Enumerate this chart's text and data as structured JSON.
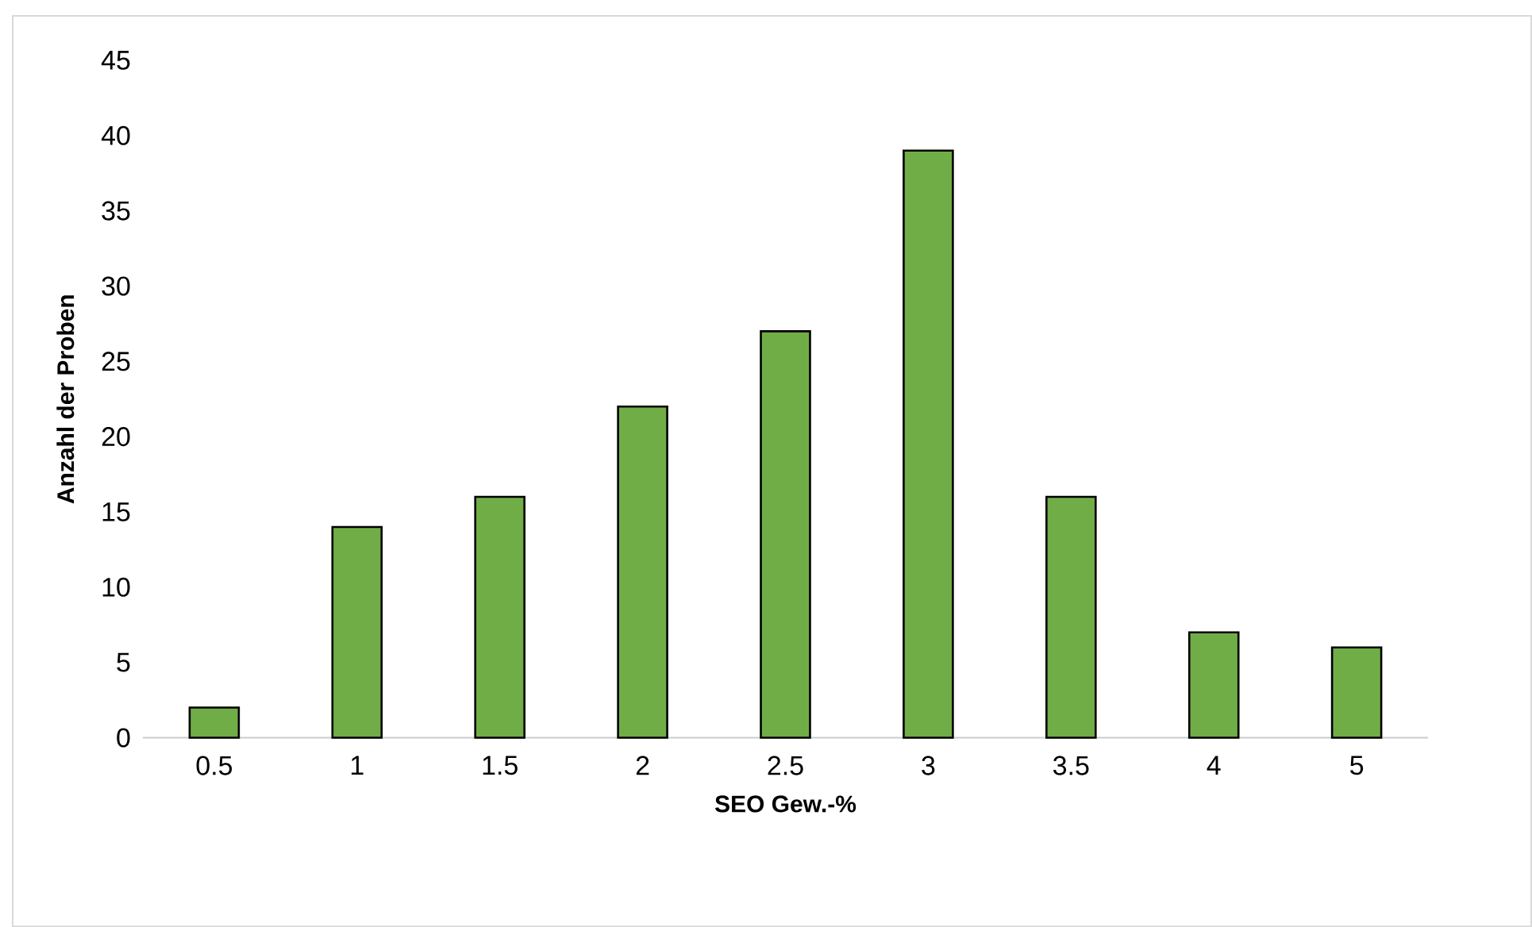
{
  "chart_data": {
    "type": "bar",
    "categories": [
      "0.5",
      "1",
      "1.5",
      "2",
      "2.5",
      "3",
      "3.5",
      "4",
      "5"
    ],
    "values": [
      2,
      14,
      16,
      22,
      27,
      39,
      16,
      7,
      6
    ],
    "color": "#70ad47",
    "xlabel": "SEO Gew.-%",
    "ylabel": "Anzahl der Proben",
    "ylim": [
      0,
      45
    ],
    "yticks": [
      0,
      5,
      10,
      15,
      20,
      25,
      30,
      35,
      40,
      45
    ]
  }
}
